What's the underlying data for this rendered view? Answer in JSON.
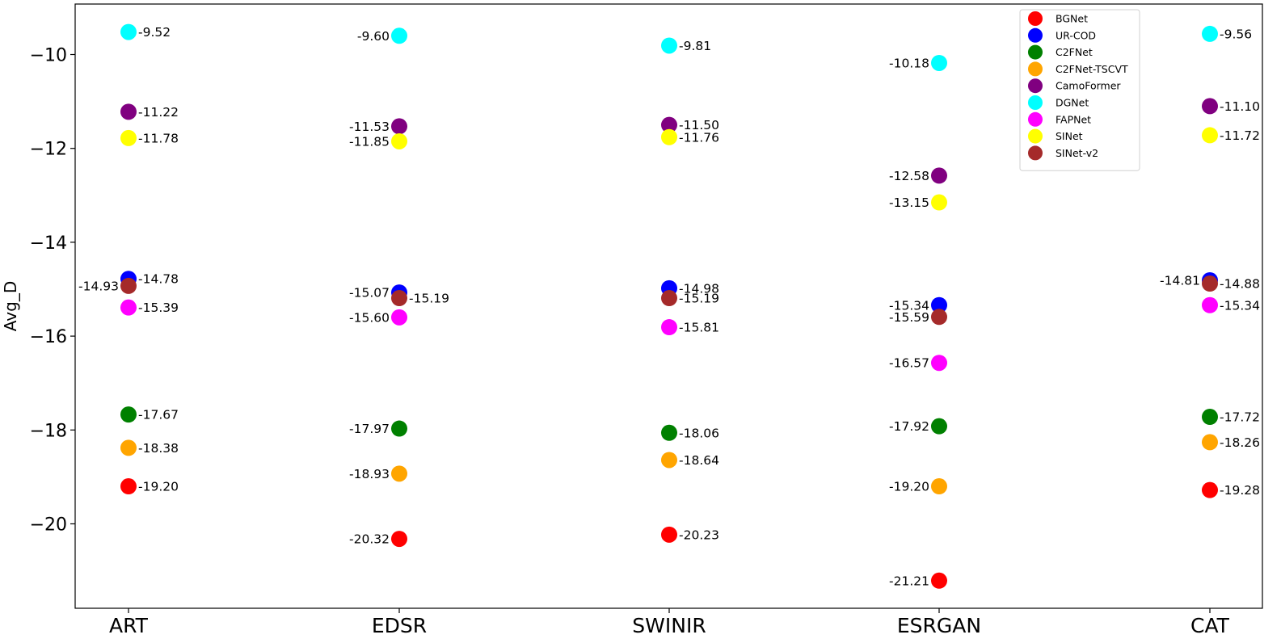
{
  "chart_data": {
    "type": "scatter",
    "ylabel": "Avg_D",
    "categories": [
      "ART",
      "EDSR",
      "SWINIR",
      "ESRGAN",
      "CAT"
    ],
    "yticks": [
      -10,
      -12,
      -14,
      -16,
      -18,
      -20
    ],
    "ytick_labels": [
      "−10",
      "−12",
      "−14",
      "−16",
      "−18",
      "−20"
    ],
    "ylim": [
      -21.6,
      -9.0
    ],
    "grid": false,
    "legend_position": "top-right",
    "series": [
      {
        "name": "BGNet",
        "color": "#ff0000",
        "values": [
          -19.2,
          -20.32,
          -20.23,
          -21.21,
          -19.28
        ],
        "labels": [
          "-19.20",
          "-20.32",
          "-20.23",
          "-21.21",
          "-19.28"
        ],
        "label_side": [
          "right",
          "left",
          "right",
          "left",
          "right"
        ]
      },
      {
        "name": "UR-COD",
        "color": "#0000ff",
        "values": [
          -14.78,
          -15.07,
          -14.98,
          -15.34,
          -14.81
        ],
        "labels": [
          "-14.78",
          "-15.07",
          "-14.98",
          "-15.34",
          "-14.81"
        ],
        "label_side": [
          "right",
          "left",
          "right",
          "left",
          "left"
        ]
      },
      {
        "name": "C2FNet",
        "color": "#008000",
        "values": [
          -17.67,
          -17.97,
          -18.06,
          -17.92,
          -17.72
        ],
        "labels": [
          "-17.67",
          "-17.97",
          "-18.06",
          "-17.92",
          "-17.72"
        ],
        "label_side": [
          "right",
          "left",
          "right",
          "left",
          "right"
        ]
      },
      {
        "name": "C2FNet-TSCVT",
        "color": "#ffa500",
        "values": [
          -18.38,
          -18.93,
          -18.64,
          -19.2,
          -18.26
        ],
        "labels": [
          "-18.38",
          "-18.93",
          "-18.64",
          "-19.20",
          "-18.26"
        ],
        "label_side": [
          "right",
          "left",
          "right",
          "left",
          "right"
        ]
      },
      {
        "name": "CamoFormer",
        "color": "#800080",
        "values": [
          -11.22,
          -11.53,
          -11.5,
          -12.58,
          -11.1
        ],
        "labels": [
          "-11.22",
          "-11.53",
          "-11.50",
          "-12.58",
          "-11.10"
        ],
        "label_side": [
          "right",
          "left",
          "right",
          "left",
          "right"
        ]
      },
      {
        "name": "DGNet",
        "color": "#00ffff",
        "values": [
          -9.52,
          -9.6,
          -9.81,
          -10.18,
          -9.56
        ],
        "labels": [
          "-9.52",
          "-9.60",
          "-9.81",
          "-10.18",
          "-9.56"
        ],
        "label_side": [
          "right",
          "left",
          "right",
          "left",
          "right"
        ]
      },
      {
        "name": "FAPNet",
        "color": "#ff00ff",
        "values": [
          -15.39,
          -15.6,
          -15.81,
          -16.57,
          -15.34
        ],
        "labels": [
          "-15.39",
          "-15.60",
          "-15.81",
          "-16.57",
          "-15.34"
        ],
        "label_side": [
          "right",
          "left",
          "right",
          "left",
          "right"
        ]
      },
      {
        "name": "SINet",
        "color": "#ffff00",
        "values": [
          -11.78,
          -11.85,
          -11.76,
          -13.15,
          -11.72
        ],
        "labels": [
          "-11.78",
          "-11.85",
          "-11.76",
          "-13.15",
          "-11.72"
        ],
        "label_side": [
          "right",
          "left",
          "right",
          "left",
          "right"
        ]
      },
      {
        "name": "SINet-v2",
        "color": "#a52a2a",
        "values": [
          -14.93,
          -15.19,
          -15.19,
          -15.59,
          -14.88
        ],
        "labels": [
          "-14.93",
          "-15.19",
          "-15.19",
          "-15.59",
          "-14.88"
        ],
        "label_side": [
          "left",
          "right",
          "right",
          "left",
          "right"
        ]
      }
    ]
  }
}
